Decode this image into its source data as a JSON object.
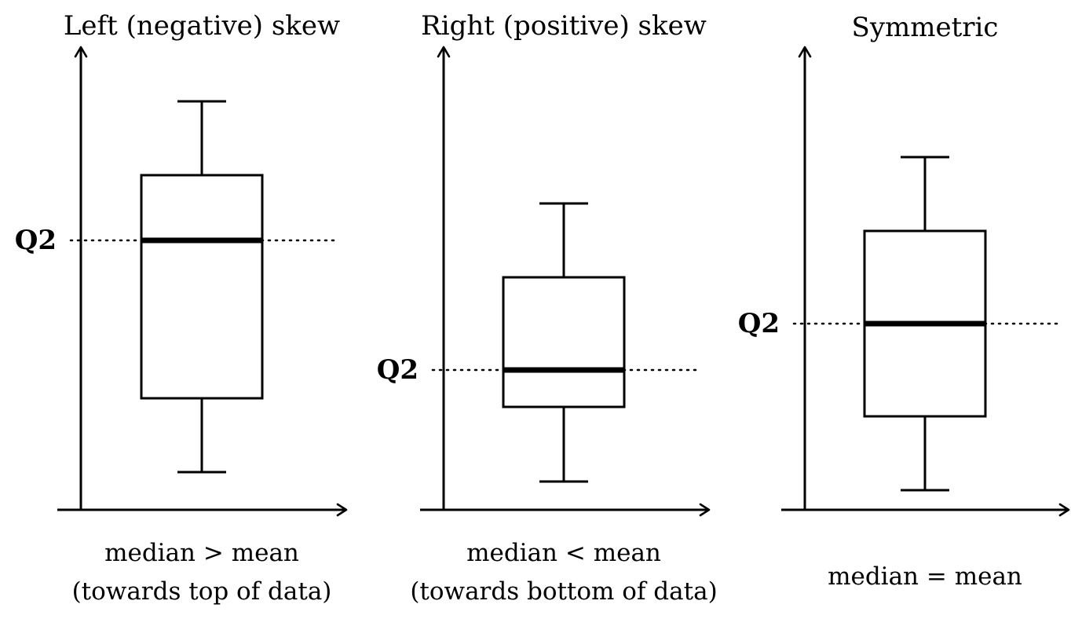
{
  "panels": [
    {
      "title": "Left (negative) skew",
      "median_label": "Q2",
      "caption_line1": "median > mean",
      "caption_line2": "(towards top of data)"
    },
    {
      "title": "Right (positive) skew",
      "median_label": "Q2",
      "caption_line1": "median < mean",
      "caption_line2": "(towards bottom of data)"
    },
    {
      "title": "Symmetric",
      "median_label": "Q2",
      "caption_line1": "median = mean",
      "caption_line2": ""
    }
  ],
  "colors": {
    "ink": "#000000",
    "background": "#ffffff"
  }
}
